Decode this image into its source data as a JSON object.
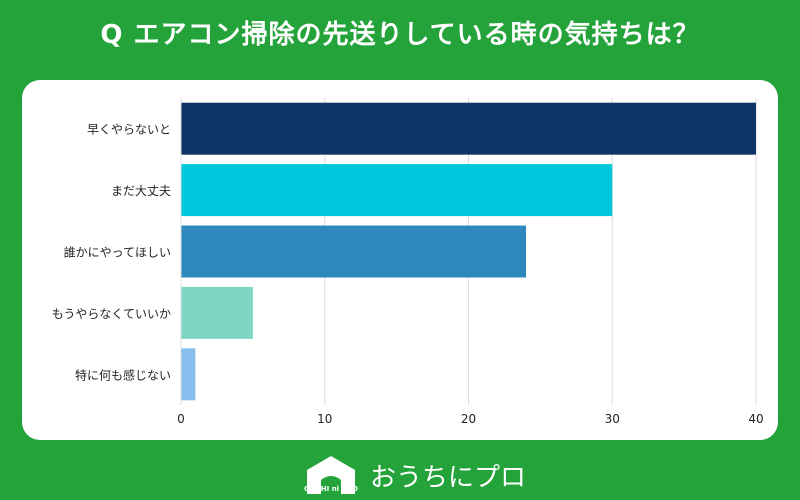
{
  "title": "Q エアコン掃除の先送りしている時の気持ちは？",
  "chart_data": {
    "type": "bar",
    "orientation": "horizontal",
    "categories": [
      "早くやらないと",
      "まだ大丈夫",
      "誰かにやってほしい",
      "もうやらなくていいか",
      "特に何も感じない"
    ],
    "values": [
      40,
      30,
      24,
      5,
      1
    ],
    "colors": [
      "#0e3566",
      "#00c8dc",
      "#2e88bc",
      "#7fd6c4",
      "#86bfee"
    ],
    "xlim": [
      0,
      40
    ],
    "xticks": [
      "0",
      "10",
      "20",
      "30",
      "40"
    ],
    "grid": true
  },
  "footer": {
    "logo_small_text": "OUCHI ni PRO",
    "logo_text": "おうちにプロ"
  }
}
